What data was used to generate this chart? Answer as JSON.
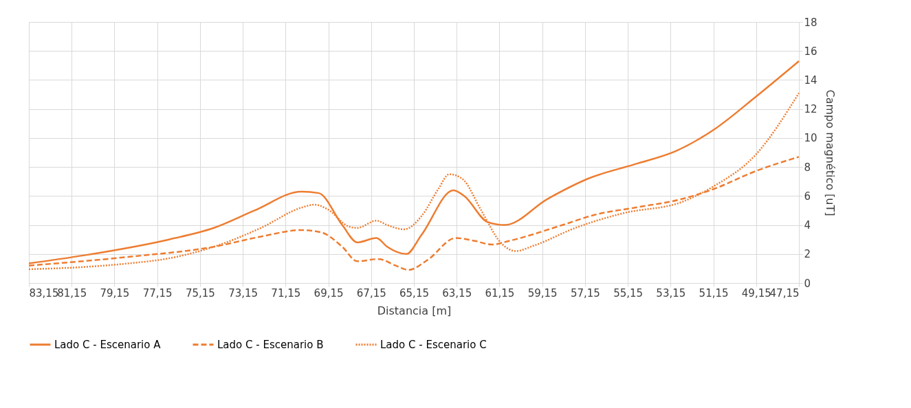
{
  "chart_data": {
    "type": "line",
    "xlabel": "Distancia [m]",
    "ylabel": "Campo magnético [uT]",
    "xlim": [
      83.15,
      47.15
    ],
    "xticks": [
      {
        "value": 83.15,
        "label": "83,15"
      },
      {
        "value": 81.15,
        "label": "81,15"
      },
      {
        "value": 79.15,
        "label": "79,15"
      },
      {
        "value": 77.15,
        "label": "77,15"
      },
      {
        "value": 75.15,
        "label": "75,15"
      },
      {
        "value": 73.15,
        "label": "73,15"
      },
      {
        "value": 71.15,
        "label": "71,15"
      },
      {
        "value": 69.15,
        "label": "69,15"
      },
      {
        "value": 67.15,
        "label": "67,15"
      },
      {
        "value": 65.15,
        "label": "65,15"
      },
      {
        "value": 63.15,
        "label": "63,15"
      },
      {
        "value": 61.15,
        "label": "61,15"
      },
      {
        "value": 59.15,
        "label": "59,15"
      },
      {
        "value": 57.15,
        "label": "57,15"
      },
      {
        "value": 55.15,
        "label": "55,15"
      },
      {
        "value": 53.15,
        "label": "53,15"
      },
      {
        "value": 51.15,
        "label": "51,15"
      },
      {
        "value": 49.15,
        "label": "49,15"
      },
      {
        "value": 47.15,
        "label": "47,15"
      }
    ],
    "ylim": [
      0,
      18
    ],
    "yticks": [
      0,
      2,
      4,
      6,
      8,
      10,
      12,
      14,
      16,
      18
    ],
    "grid": true,
    "legend": "bottom",
    "marker": "none",
    "series": [
      {
        "name": "Lado C - Escenario A",
        "color": "#ed7d31",
        "line_style": "solid",
        "x": [
          83.15,
          80.6,
          76.6,
          74.5,
          72.6,
          70.4,
          69.6,
          68.5,
          67.8,
          66.9,
          66.4,
          65.5,
          64.8,
          63.3,
          62.8,
          61.7,
          60.9,
          58.9,
          57.0,
          54.8,
          52.9,
          51.1,
          49.2,
          47.15
        ],
        "values": [
          1.35,
          1.9,
          3.0,
          3.8,
          5.0,
          6.3,
          6.2,
          4.0,
          2.8,
          3.1,
          2.5,
          2.0,
          3.3,
          6.4,
          6.0,
          4.2,
          4.0,
          5.8,
          7.2,
          8.2,
          9.1,
          10.6,
          12.8,
          15.3
        ]
      },
      {
        "name": "Lado C - Escenario B",
        "color": "#ed7d31",
        "line_style": "dashed",
        "x": [
          83.15,
          78.5,
          74.5,
          72.3,
          70.4,
          69.5,
          68.5,
          67.8,
          66.8,
          66.0,
          65.4,
          64.5,
          63.2,
          62.3,
          61.5,
          60.7,
          58.2,
          56.7,
          54.8,
          52.6,
          51.1,
          49.2,
          47.15
        ],
        "values": [
          1.2,
          1.8,
          2.5,
          3.2,
          3.65,
          3.5,
          2.5,
          1.5,
          1.65,
          1.2,
          0.9,
          1.6,
          3.1,
          2.9,
          2.65,
          2.9,
          4.0,
          4.7,
          5.2,
          5.8,
          6.5,
          7.7,
          8.7
        ]
      },
      {
        "name": "Lado C - Escenario C",
        "color": "#ed7d31",
        "line_style": "dotted",
        "x": [
          83.15,
          80.6,
          78.5,
          76.6,
          74.5,
          72.3,
          70.4,
          69.8,
          69.2,
          68.2,
          67.8,
          66.9,
          66.4,
          65.6,
          64.8,
          64.0,
          63.5,
          62.9,
          62.0,
          61.1,
          60.4,
          59.5,
          57.6,
          55.4,
          52.6,
          51.1,
          49.2,
          47.15
        ],
        "values": [
          0.95,
          1.1,
          1.35,
          1.7,
          2.5,
          3.8,
          5.2,
          5.4,
          5.1,
          3.9,
          3.8,
          4.3,
          4.0,
          3.7,
          4.6,
          6.5,
          7.5,
          7.2,
          5.0,
          2.8,
          2.2,
          2.6,
          3.8,
          4.8,
          5.6,
          6.7,
          8.8,
          13.1
        ]
      }
    ]
  }
}
